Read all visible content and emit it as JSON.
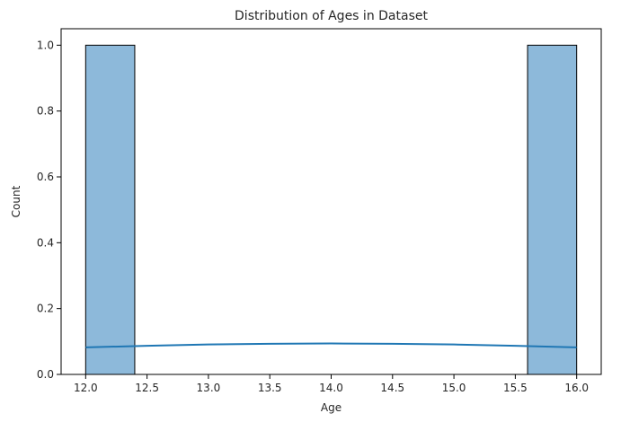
{
  "chart_data": {
    "type": "bar",
    "subtype": "histogram-with-kde",
    "title": "Distribution of Ages in Dataset",
    "xlabel": "Age",
    "ylabel": "Count",
    "xlim": [
      11.8,
      16.2
    ],
    "ylim": [
      0,
      1.05
    ],
    "xticks": [
      "12.0",
      "12.5",
      "13.0",
      "13.5",
      "14.0",
      "14.5",
      "15.0",
      "15.5",
      "16.0"
    ],
    "yticks": [
      "0.0",
      "0.2",
      "0.4",
      "0.6",
      "0.8",
      "1.0"
    ],
    "bins": [
      {
        "x0": 12.0,
        "x1": 12.4,
        "count": 1
      },
      {
        "x0": 12.4,
        "x1": 12.8,
        "count": 0
      },
      {
        "x0": 12.8,
        "x1": 13.2,
        "count": 0
      },
      {
        "x0": 13.2,
        "x1": 13.6,
        "count": 0
      },
      {
        "x0": 13.6,
        "x1": 14.0,
        "count": 0
      },
      {
        "x0": 14.0,
        "x1": 14.4,
        "count": 0
      },
      {
        "x0": 14.4,
        "x1": 14.8,
        "count": 0
      },
      {
        "x0": 14.8,
        "x1": 15.2,
        "count": 0
      },
      {
        "x0": 15.2,
        "x1": 15.6,
        "count": 0
      },
      {
        "x0": 15.6,
        "x1": 16.0,
        "count": 1
      }
    ],
    "kde": {
      "x": [
        12.0,
        12.5,
        13.0,
        13.5,
        14.0,
        14.5,
        15.0,
        15.5,
        16.0
      ],
      "y": [
        0.082,
        0.087,
        0.091,
        0.093,
        0.094,
        0.093,
        0.091,
        0.087,
        0.082
      ]
    },
    "grid": false,
    "colors": {
      "bar_fill": "#8db9da",
      "bar_edge": "#000000",
      "kde_line": "#1f77b4"
    }
  }
}
